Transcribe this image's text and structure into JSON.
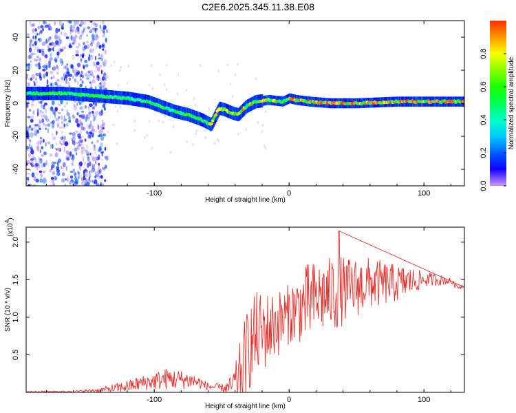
{
  "title": "C2E6.2025.345.11.38.E08",
  "chart_data": [
    {
      "type": "heatmap",
      "xlabel": "Height of straight line (km)",
      "ylabel": "Frequency (Hz)",
      "xlim": [
        -195,
        130
      ],
      "ylim": [
        -50,
        50
      ],
      "xticks": [
        -100,
        0,
        100
      ],
      "yticks": [
        -40,
        -20,
        0,
        20,
        40
      ],
      "colorbar": {
        "label": "Normalized spectral amplitude",
        "range": [
          0,
          1
        ],
        "ticks": [
          "0.0",
          "0.2",
          "0.4",
          "0.6",
          "0.8"
        ]
      },
      "ridge": {
        "x": [
          -195,
          -170,
          -150,
          -135,
          -120,
          -105,
          -95,
          -85,
          -75,
          -65,
          -58,
          -52,
          -48,
          -42,
          -38,
          -32,
          -25,
          -15,
          -5,
          0,
          5,
          15,
          30,
          50,
          80,
          110,
          130
        ],
        "freq": [
          6,
          6,
          5,
          4,
          3,
          1,
          -2,
          -5,
          -7,
          -10,
          -13,
          -3,
          -4,
          -6,
          -7,
          -2,
          1,
          2,
          1,
          3,
          2,
          1,
          0,
          0,
          1,
          1,
          1
        ]
      },
      "noise_region_x": [
        -195,
        -135
      ]
    },
    {
      "type": "line",
      "xlabel": "Height of straight line (km)",
      "ylabel": "SNR (10 * v/v)",
      "multiplier": "(x10",
      "multiplier_exp": "4",
      "xlim": [
        -195,
        130
      ],
      "ylim": [
        0,
        2.2
      ],
      "xticks": [
        -100,
        0,
        100
      ],
      "yticks": [
        0.5,
        1.0,
        1.5,
        2.0
      ],
      "color": "#e8322e",
      "envelope": {
        "x": [
          -195,
          -160,
          -140,
          -130,
          -120,
          -110,
          -100,
          -90,
          -80,
          -70,
          -60,
          -50,
          -45,
          -40,
          -35,
          -30,
          -25,
          -20,
          -15,
          -10,
          -5,
          0,
          5,
          10,
          15,
          20,
          30,
          35,
          40,
          50,
          60,
          70,
          80,
          90,
          100,
          110,
          120,
          125,
          130
        ],
        "base": [
          0.01,
          0.01,
          0.03,
          0.05,
          0.08,
          0.12,
          0.15,
          0.18,
          0.17,
          0.15,
          0.08,
          0.06,
          0.06,
          0.12,
          0.3,
          0.6,
          0.75,
          0.8,
          0.85,
          0.9,
          0.95,
          1.05,
          1.1,
          1.15,
          1.2,
          1.25,
          1.3,
          1.35,
          1.35,
          1.4,
          1.45,
          1.45,
          1.45,
          1.48,
          1.5,
          1.5,
          1.48,
          1.4,
          1.42
        ],
        "amp": [
          0.01,
          0.01,
          0.03,
          0.06,
          0.08,
          0.1,
          0.12,
          0.15,
          0.13,
          0.1,
          0.05,
          0.05,
          0.1,
          0.25,
          0.5,
          0.6,
          0.6,
          0.55,
          0.5,
          0.45,
          0.45,
          0.4,
          0.45,
          0.5,
          0.55,
          0.5,
          0.5,
          0.55,
          0.45,
          0.4,
          0.35,
          0.3,
          0.25,
          0.2,
          0.1,
          0.08,
          0.04,
          0.03,
          0.03
        ]
      },
      "peak": {
        "x": 37,
        "y": 2.15
      }
    }
  ]
}
